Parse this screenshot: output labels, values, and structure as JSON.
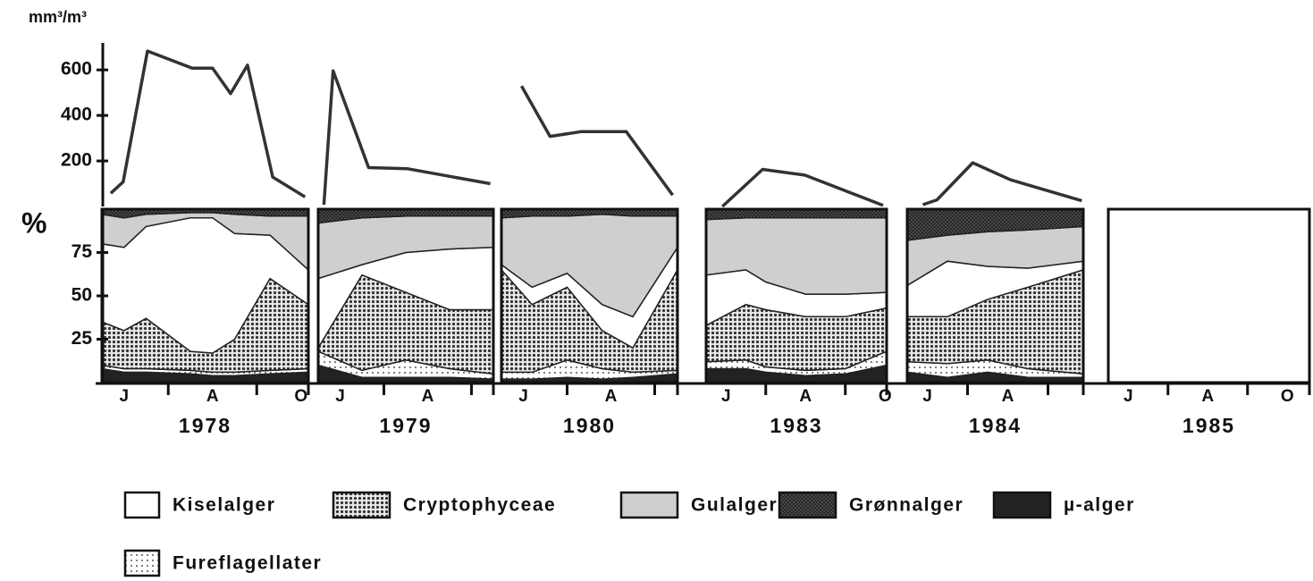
{
  "chart_data": [
    {
      "type": "line",
      "y_label": "mm³/m³",
      "color": "#333333",
      "ylim": [
        0,
        750
      ],
      "yticks": [
        200,
        400,
        600
      ],
      "panels": [
        {
          "x": [
            5.7,
            5.98,
            6.53,
            7.54,
            8.0,
            8.41,
            8.79,
            9.36,
            10.09
          ],
          "values": [
            58,
            108,
            683,
            608,
            608,
            496,
            621,
            129,
            42
          ]
        },
        {
          "x": [
            5.63,
            5.84,
            6.65,
            7.53,
            9.43
          ],
          "values": [
            8,
            596,
            171,
            166,
            100
          ]
        },
        {
          "x": [
            5.96,
            6.61,
            7.33,
            8.35,
            9.41
          ],
          "values": [
            529,
            308,
            329,
            329,
            50
          ]
        },
        {
          "x": [
            5.91,
            6.92,
            7.98,
            9.95
          ],
          "values": [
            0,
            163,
            138,
            5
          ]
        },
        {
          "x": [
            5.89,
            6.24,
            7.13,
            8.07,
            9.84
          ],
          "values": [
            8,
            29,
            192,
            117,
            25
          ]
        }
      ]
    },
    {
      "type": "stacked-area",
      "y_label": "%",
      "ylim": [
        0,
        100
      ],
      "yticks": [
        25,
        50,
        75
      ],
      "xticks": [
        {
          "value": 6,
          "label": "J"
        },
        {
          "value": 8,
          "label": "A"
        },
        {
          "value": 10,
          "label": "O"
        }
      ],
      "minor_xticks": [
        7,
        9
      ],
      "series": [
        {
          "name": "Kiselalger",
          "color": "#ffffff",
          "pattern": "none"
        },
        {
          "name": "Cryptophyceae",
          "color": "#555555",
          "pattern": "dense-dots"
        },
        {
          "name": "Gulalger",
          "color": "#cfcfcf",
          "pattern": "none"
        },
        {
          "name": "Grønnalger",
          "color": "#444444",
          "pattern": "crosshatch"
        },
        {
          "name": "µ-alger",
          "color": "#222222",
          "pattern": "none"
        },
        {
          "name": "Fureflagellater",
          "color": "#9a9a9a",
          "pattern": "sparse-dots"
        }
      ],
      "panels": [
        {
          "year": "1978",
          "x": [
            5.55,
            6.0,
            6.5,
            7.5,
            8.0,
            8.5,
            9.3,
            10.1
          ],
          "values": [
            [
              45,
              48,
              53,
              77,
              78,
              61,
              25,
              20
            ],
            [
              25,
              22,
              29,
              11,
              11,
              19,
              53,
              37
            ],
            [
              17,
              17,
              7,
              3,
              3,
              11,
              11,
              31
            ],
            [
              3,
              5,
              3,
              2,
              2,
              3,
              4,
              4
            ],
            [
              8,
              6,
              6,
              5,
              4,
              4,
              5,
              6
            ],
            [
              2,
              2,
              2,
              2,
              2,
              2,
              2,
              2
            ]
          ]
        },
        {
          "year": "1979",
          "x": [
            5.55,
            6.5,
            7.5,
            8.5,
            9.45
          ],
          "values": [
            [
              40,
              6,
              23,
              35,
              36
            ],
            [
              2,
              55,
              39,
              34,
              37
            ],
            [
              32,
              27,
              21,
              19,
              18
            ],
            [
              8,
              5,
              4,
              4,
              4
            ],
            [
              10,
              3,
              3,
              3,
              2
            ],
            [
              8,
              4,
              10,
              5,
              3
            ]
          ]
        },
        {
          "year": "1980",
          "x": [
            5.55,
            6.2,
            7.0,
            7.8,
            8.5,
            9.5
          ],
          "values": [
            [
              3,
              10,
              8,
              15,
              18,
              13
            ],
            [
              59,
              39,
              42,
              22,
              14,
              58
            ],
            [
              27,
              41,
              33,
              52,
              58,
              18
            ],
            [
              5,
              4,
              4,
              3,
              4,
              4
            ],
            [
              2,
              2,
              3,
              2,
              3,
              5
            ],
            [
              4,
              4,
              10,
              6,
              3,
              2
            ]
          ]
        },
        {
          "year": "1983",
          "x": [
            5.6,
            6.5,
            7.0,
            8.0,
            9.0,
            9.9
          ],
          "values": [
            [
              29,
              20,
              16,
              13,
              13,
              9
            ],
            [
              21,
              32,
              33,
              31,
              30,
              25
            ],
            [
              32,
              30,
              37,
              44,
              44,
              43
            ],
            [
              6,
              5,
              5,
              5,
              5,
              5
            ],
            [
              8,
              8,
              6,
              4,
              5,
              10
            ],
            [
              4,
              5,
              3,
              3,
              3,
              8
            ]
          ]
        },
        {
          "year": "1984",
          "x": [
            5.55,
            6.5,
            7.5,
            8.5,
            9.8
          ],
          "values": [
            [
              18,
              32,
              19,
              11,
              5
            ],
            [
              26,
              27,
              35,
              47,
              60
            ],
            [
              26,
              15,
              20,
              22,
              20
            ],
            [
              18,
              15,
              13,
              12,
              10
            ],
            [
              6,
              3,
              6,
              3,
              3
            ],
            [
              6,
              8,
              7,
              5,
              2
            ]
          ]
        },
        {
          "year": "1985",
          "x": [],
          "values": []
        }
      ]
    }
  ]
}
